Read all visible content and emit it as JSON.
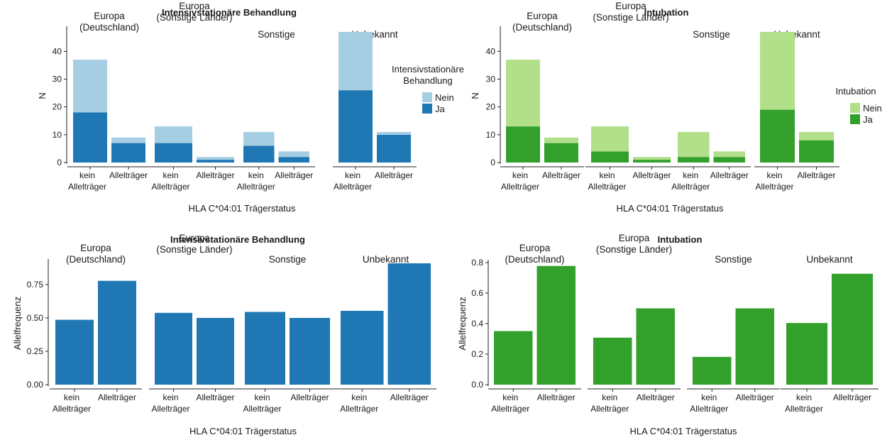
{
  "chart_data": [
    {
      "type": "bar",
      "stacked": true,
      "title": "Intensivstationäre Behandlung",
      "facets": [
        "Europa\n(Deutschland)",
        "Europa\n(Sonstige Länder)",
        "Sonstige",
        "Unbekannt"
      ],
      "categories": [
        "kein\nAllelträger",
        "Allelträger"
      ],
      "xlabel": "HLA C*04:01 Trägerstatus",
      "ylabel": "N",
      "ylim": [
        0,
        48
      ],
      "yticks": [
        "0",
        "10",
        "20",
        "30",
        "40"
      ],
      "legend": {
        "title": "Intensivstationäre\nBehandlung",
        "position": "right"
      },
      "series": [
        {
          "name": "Ja",
          "color": "#1f78b4",
          "values": [
            [
              18,
              7
            ],
            [
              7,
              1
            ],
            [
              6,
              2
            ],
            [
              26,
              10
            ]
          ]
        },
        {
          "name": "Nein",
          "color": "#a6cee3",
          "values": [
            [
              19,
              2
            ],
            [
              6,
              1
            ],
            [
              5,
              2
            ],
            [
              21,
              1
            ]
          ]
        }
      ]
    },
    {
      "type": "bar",
      "stacked": true,
      "title": "Intubation",
      "facets": [
        "Europa\n(Deutschland)",
        "Europa\n(Sonstige Länder)",
        "Sonstige",
        "Unbekannt"
      ],
      "categories": [
        "kein\nAllelträger",
        "Allelträger"
      ],
      "xlabel": "HLA C*04:01 Trägerstatus",
      "ylabel": "N",
      "ylim": [
        0,
        48
      ],
      "yticks": [
        "0",
        "10",
        "20",
        "30",
        "40"
      ],
      "legend": {
        "title": "Intubation",
        "position": "right"
      },
      "series": [
        {
          "name": "Ja",
          "color": "#33a02c",
          "values": [
            [
              13,
              7
            ],
            [
              4,
              1
            ],
            [
              2,
              2
            ],
            [
              19,
              8
            ]
          ]
        },
        {
          "name": "Nein",
          "color": "#b2df8a",
          "values": [
            [
              24,
              2
            ],
            [
              9,
              1
            ],
            [
              9,
              2
            ],
            [
              28,
              3
            ]
          ]
        }
      ]
    },
    {
      "type": "bar",
      "title": "Intensivstationäre Behandlung",
      "facets": [
        "Europa\n(Deutschland)",
        "Europa\n(Sonstige Länder)",
        "Sonstige",
        "Unbekannt"
      ],
      "categories": [
        "kein\nAllelträger",
        "Allelträger"
      ],
      "xlabel": "HLA C*04:01 Trägerstatus",
      "ylabel": "Allelfrequenz",
      "ylim": [
        0,
        0.92
      ],
      "yticks": [
        "0.00",
        "0.25",
        "0.50",
        "0.75"
      ],
      "series": [
        {
          "color": "#1f78b4",
          "values": [
            [
              0.486,
              0.778
            ],
            [
              0.538,
              0.5
            ],
            [
              0.545,
              0.5
            ],
            [
              0.553,
              0.909
            ]
          ]
        }
      ]
    },
    {
      "type": "bar",
      "title": "Intubation",
      "facets": [
        "Europa\n(Deutschland)",
        "Europa\n(Sonstige Länder)",
        "Sonstige",
        "Unbekannt"
      ],
      "categories": [
        "kein\nAllelträger",
        "Allelträger"
      ],
      "xlabel": "HLA C*04:01 Trägerstatus",
      "ylabel": "Allelfrequenz",
      "ylim": [
        0,
        0.8
      ],
      "yticks": [
        "0.0",
        "0.2",
        "0.4",
        "0.6",
        "0.8"
      ],
      "series": [
        {
          "color": "#33a02c",
          "values": [
            [
              0.351,
              0.778
            ],
            [
              0.308,
              0.5
            ],
            [
              0.182,
              0.5
            ],
            [
              0.404,
              0.727
            ]
          ]
        }
      ]
    }
  ]
}
